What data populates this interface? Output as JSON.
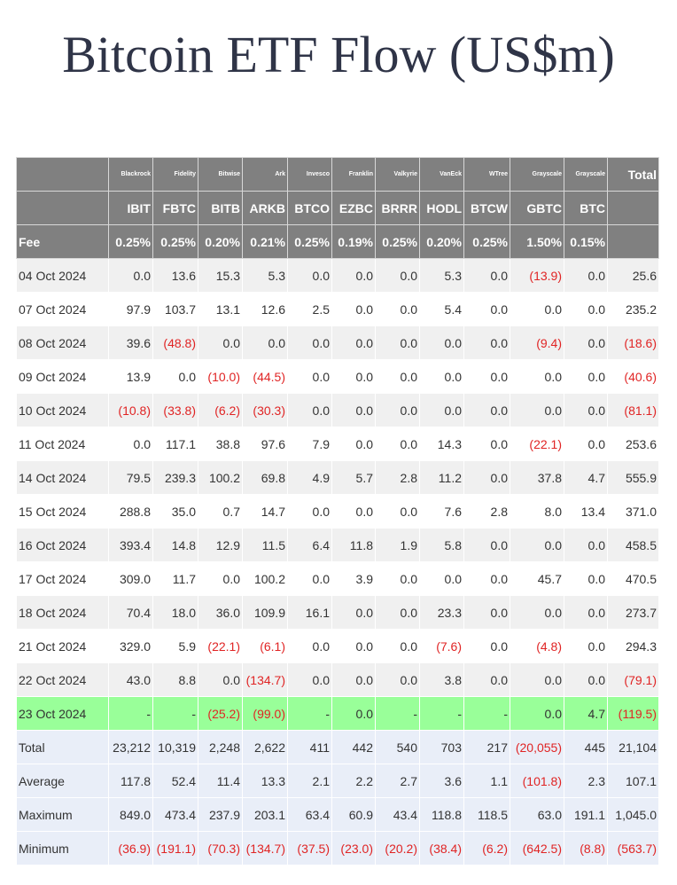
{
  "title": "Bitcoin ETF Flow (US$m)",
  "table": {
    "header": {
      "providers": [
        "Blackrock",
        "Fidelity",
        "Bitwise",
        "Ark",
        "Invesco",
        "Franklin",
        "Valkyrie",
        "VanEck",
        "WTree",
        "Grayscale",
        "Grayscale"
      ],
      "total_label": "Total",
      "tickers": [
        "IBIT",
        "FBTC",
        "BITB",
        "ARKB",
        "BTCO",
        "EZBC",
        "BRRR",
        "HODL",
        "BTCW",
        "GBTC",
        "BTC"
      ],
      "fee_label": "Fee",
      "fees": [
        "0.25%",
        "0.25%",
        "0.20%",
        "0.21%",
        "0.25%",
        "0.19%",
        "0.25%",
        "0.20%",
        "0.25%",
        "1.50%",
        "0.15%"
      ]
    },
    "rows": [
      [
        "04 Oct 2024",
        "0.0",
        "13.6",
        "15.3",
        "5.3",
        "0.0",
        "0.0",
        "0.0",
        "5.3",
        "0.0",
        "(13.9)",
        "0.0",
        "25.6"
      ],
      [
        "07 Oct 2024",
        "97.9",
        "103.7",
        "13.1",
        "12.6",
        "2.5",
        "0.0",
        "0.0",
        "5.4",
        "0.0",
        "0.0",
        "0.0",
        "235.2"
      ],
      [
        "08 Oct 2024",
        "39.6",
        "(48.8)",
        "0.0",
        "0.0",
        "0.0",
        "0.0",
        "0.0",
        "0.0",
        "0.0",
        "(9.4)",
        "0.0",
        "(18.6)"
      ],
      [
        "09 Oct 2024",
        "13.9",
        "0.0",
        "(10.0)",
        "(44.5)",
        "0.0",
        "0.0",
        "0.0",
        "0.0",
        "0.0",
        "0.0",
        "0.0",
        "(40.6)"
      ],
      [
        "10 Oct 2024",
        "(10.8)",
        "(33.8)",
        "(6.2)",
        "(30.3)",
        "0.0",
        "0.0",
        "0.0",
        "0.0",
        "0.0",
        "0.0",
        "0.0",
        "(81.1)"
      ],
      [
        "11 Oct 2024",
        "0.0",
        "117.1",
        "38.8",
        "97.6",
        "7.9",
        "0.0",
        "0.0",
        "14.3",
        "0.0",
        "(22.1)",
        "0.0",
        "253.6"
      ],
      [
        "14 Oct 2024",
        "79.5",
        "239.3",
        "100.2",
        "69.8",
        "4.9",
        "5.7",
        "2.8",
        "11.2",
        "0.0",
        "37.8",
        "4.7",
        "555.9"
      ],
      [
        "15 Oct 2024",
        "288.8",
        "35.0",
        "0.7",
        "14.7",
        "0.0",
        "0.0",
        "0.0",
        "7.6",
        "2.8",
        "8.0",
        "13.4",
        "371.0"
      ],
      [
        "16 Oct 2024",
        "393.4",
        "14.8",
        "12.9",
        "11.5",
        "6.4",
        "11.8",
        "1.9",
        "5.8",
        "0.0",
        "0.0",
        "0.0",
        "458.5"
      ],
      [
        "17 Oct 2024",
        "309.0",
        "11.7",
        "0.0",
        "100.2",
        "0.0",
        "3.9",
        "0.0",
        "0.0",
        "0.0",
        "45.7",
        "0.0",
        "470.5"
      ],
      [
        "18 Oct 2024",
        "70.4",
        "18.0",
        "36.0",
        "109.9",
        "16.1",
        "0.0",
        "0.0",
        "23.3",
        "0.0",
        "0.0",
        "0.0",
        "273.7"
      ],
      [
        "21 Oct 2024",
        "329.0",
        "5.9",
        "(22.1)",
        "(6.1)",
        "0.0",
        "0.0",
        "0.0",
        "(7.6)",
        "0.0",
        "(4.8)",
        "0.0",
        "294.3"
      ],
      [
        "22 Oct 2024",
        "43.0",
        "8.8",
        "0.0",
        "(134.7)",
        "0.0",
        "0.0",
        "0.0",
        "3.8",
        "0.0",
        "0.0",
        "0.0",
        "(79.1)"
      ],
      [
        "23 Oct 2024",
        "-",
        "-",
        "(25.2)",
        "(99.0)",
        "-",
        "0.0",
        "-",
        "-",
        "-",
        "0.0",
        "4.7",
        "(119.5)"
      ]
    ],
    "summary": [
      [
        "Total",
        "23,212",
        "10,319",
        "2,248",
        "2,622",
        "411",
        "442",
        "540",
        "703",
        "217",
        "(20,055)",
        "445",
        "21,104"
      ],
      [
        "Average",
        "117.8",
        "52.4",
        "11.4",
        "13.3",
        "2.1",
        "2.2",
        "2.7",
        "3.6",
        "1.1",
        "(101.8)",
        "2.3",
        "107.1"
      ],
      [
        "Maximum",
        "849.0",
        "473.4",
        "237.9",
        "203.1",
        "63.4",
        "60.9",
        "43.4",
        "118.8",
        "118.5",
        "63.0",
        "191.1",
        "1,045.0"
      ],
      [
        "Minimum",
        "(36.9)",
        "(191.1)",
        "(70.3)",
        "(134.7)",
        "(37.5)",
        "(23.0)",
        "(20.2)",
        "(38.4)",
        "(6.2)",
        "(642.5)",
        "(8.8)",
        "(563.7)"
      ]
    ]
  }
}
